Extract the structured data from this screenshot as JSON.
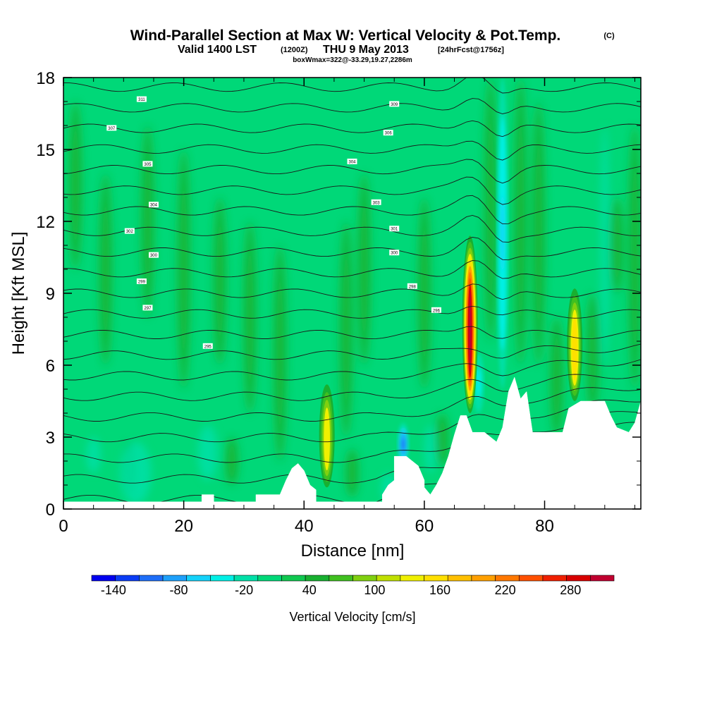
{
  "titles": {
    "main": "Wind-Parallel Section at Max W: Vertical Velocity & Pot.Temp.",
    "copyright": "(C)",
    "valid": "Valid 1400 LST",
    "utc": "(1200Z)",
    "date": "THU 9 May 2013",
    "forecast": "[24hrFcst@1756z]",
    "box": "boxWmax=322@-33.29,19.27,2286m"
  },
  "chart_data": {
    "type": "heatmap",
    "xlabel": "Distance [nm]",
    "ylabel": "Height [Kft MSL]",
    "xlim": [
      0,
      96
    ],
    "ylim": [
      0,
      18
    ],
    "x_ticks": [
      0,
      20,
      40,
      60,
      80
    ],
    "y_ticks": [
      0,
      3,
      6,
      9,
      12,
      15,
      18
    ],
    "colorbar": {
      "label": "Vertical Velocity [cm/s]",
      "range": [
        -160,
        320
      ],
      "tick_values": [
        -140,
        -80,
        -20,
        40,
        100,
        160,
        220,
        280
      ],
      "colors": [
        "#0000f0",
        "#0a3cf5",
        "#1e6ef8",
        "#1ea0fa",
        "#14d2fa",
        "#00f0e6",
        "#00e0a8",
        "#00d878",
        "#10c850",
        "#18b030",
        "#40c020",
        "#80d010",
        "#c0e000",
        "#f0f000",
        "#ffe000",
        "#ffc000",
        "#ffa000",
        "#ff7800",
        "#ff5000",
        "#f02000",
        "#d80000",
        "#c00030"
      ]
    },
    "terrain_kft": [
      [
        0,
        0.3
      ],
      [
        23,
        0.3
      ],
      [
        23,
        0.6
      ],
      [
        25,
        0.6
      ],
      [
        25,
        0.3
      ],
      [
        32,
        0.3
      ],
      [
        32,
        0.6
      ],
      [
        36,
        0.6
      ],
      [
        37,
        1.2
      ],
      [
        38,
        1.7
      ],
      [
        39,
        1.9
      ],
      [
        40,
        1.6
      ],
      [
        41,
        1.0
      ],
      [
        42,
        0.8
      ],
      [
        42,
        0.3
      ],
      [
        53,
        0.3
      ],
      [
        53,
        0.6
      ],
      [
        54,
        1.0
      ],
      [
        55,
        1.2
      ],
      [
        55,
        2.2
      ],
      [
        57,
        2.2
      ],
      [
        58,
        2.0
      ],
      [
        59,
        1.8
      ],
      [
        60,
        1.2
      ],
      [
        60,
        0.9
      ],
      [
        61,
        0.6
      ],
      [
        62,
        1.0
      ],
      [
        63,
        1.5
      ],
      [
        64,
        2.2
      ],
      [
        65,
        3.1
      ],
      [
        66,
        3.9
      ],
      [
        67,
        3.9
      ],
      [
        68,
        3.2
      ],
      [
        70,
        3.2
      ],
      [
        72,
        2.8
      ],
      [
        73,
        3.4
      ],
      [
        74,
        4.9
      ],
      [
        75,
        5.5
      ],
      [
        76,
        4.6
      ],
      [
        77,
        4.9
      ],
      [
        78,
        3.2
      ],
      [
        83,
        3.2
      ],
      [
        84,
        4.2
      ],
      [
        86,
        4.5
      ],
      [
        90,
        4.5
      ],
      [
        91,
        3.9
      ],
      [
        92,
        3.4
      ],
      [
        94,
        3.2
      ],
      [
        95,
        3.6
      ],
      [
        96,
        4.5
      ]
    ],
    "updrafts": [
      {
        "x": 67.6,
        "base_kft": 4.0,
        "top_kft": 11.4,
        "peak_cms": 322
      },
      {
        "x": 85.0,
        "base_kft": 4.5,
        "top_kft": 9.2,
        "peak_cms": 160
      },
      {
        "x": 43.8,
        "base_kft": 0.9,
        "top_kft": 5.2,
        "peak_cms": 130
      }
    ],
    "downdrafts": [
      {
        "x": 56.5,
        "base_kft": 1.8,
        "top_kft": 3.6,
        "min_cms": -110
      },
      {
        "x": 73.0,
        "base_kft": 5.0,
        "top_kft": 18.0,
        "min_cms": -60
      },
      {
        "x": 69.0,
        "base_kft": 4.0,
        "top_kft": 6.5,
        "min_cms": -50
      }
    ],
    "theta_contour_labels": [
      "311",
      "309",
      "307",
      "306",
      "305",
      "304",
      "304",
      "303",
      "302",
      "301",
      "300",
      "300",
      "299",
      "298",
      "297",
      "296",
      "295"
    ]
  }
}
